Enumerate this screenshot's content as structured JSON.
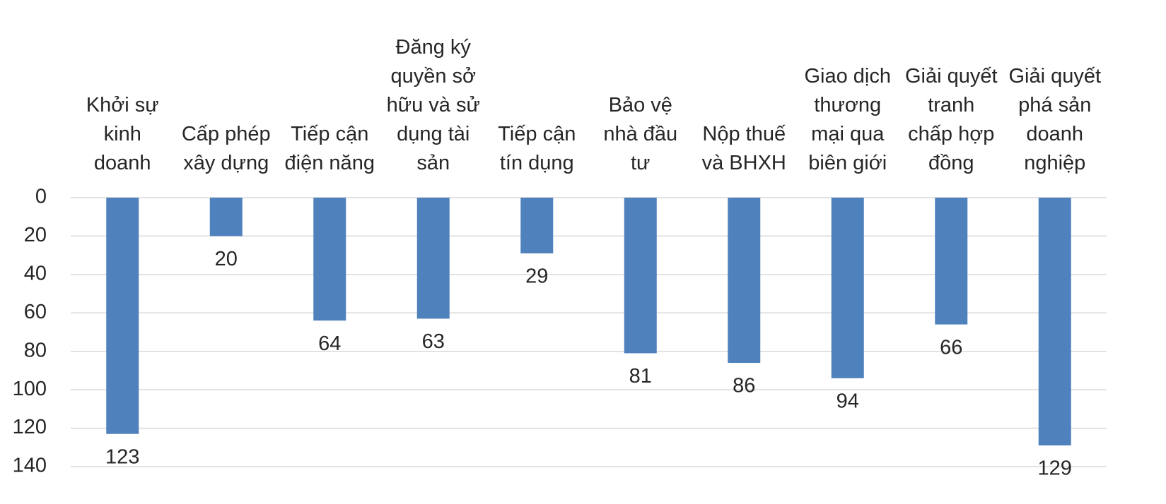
{
  "chart_data": {
    "type": "bar",
    "categories": [
      "Khởi sự kinh doanh",
      "Cấp phép xây dựng",
      "Tiếp cận điện năng",
      "Đăng ký quyền sở hữu và sử dụng tài sản",
      "Tiếp cận tín dụng",
      "Bảo vệ nhà đầu tư",
      "Nộp thuế và BHXH",
      "Giao dịch thương mại qua biên giới",
      "Giải quyết tranh chấp hợp đồng",
      "Giải quyết phá sản doanh nghiệp"
    ],
    "values": [
      123,
      20,
      64,
      63,
      29,
      81,
      86,
      94,
      66,
      129
    ],
    "color": "#4f81bd",
    "ylim": [
      0,
      140
    ],
    "yticks": [
      0,
      20,
      40,
      60,
      80,
      100,
      120,
      140
    ],
    "y_inverted": true,
    "grid": true
  }
}
